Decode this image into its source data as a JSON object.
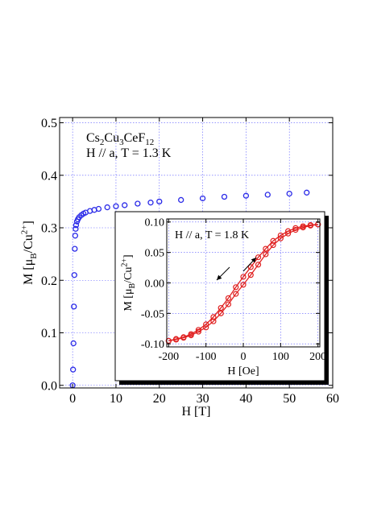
{
  "chart_data": [
    {
      "type": "scatter",
      "role": "main",
      "xlabel": "H [T]",
      "ylabel": {
        "prefix": "M [",
        "mu": "μ",
        "mu_sub": "B",
        "slash": "/Cu",
        "sup": "2+",
        "suffix": "]"
      },
      "annotation": {
        "formula": [
          {
            "t": "Cs",
            "s": ""
          },
          {
            "t": "2",
            "s": "sub"
          },
          {
            "t": "Cu",
            "s": ""
          },
          {
            "t": "3",
            "s": "sub"
          },
          {
            "t": "CeF",
            "s": ""
          },
          {
            "t": "12",
            "s": "sub"
          }
        ],
        "condition": "H // a, T = 1.3 K"
      },
      "xlim": [
        -3,
        60
      ],
      "ylim": [
        -0.005,
        0.51
      ],
      "xticks": [
        0,
        10,
        20,
        30,
        40,
        50,
        60
      ],
      "xtick_labels": [
        "0",
        "10",
        "20",
        "30",
        "40",
        "50",
        "60"
      ],
      "yticks": [
        0,
        0.1,
        0.2,
        0.3,
        0.4,
        0.5
      ],
      "ytick_labels": [
        "0.0",
        "0.1",
        "0.2",
        "0.3",
        "0.4",
        "0.5"
      ],
      "grid": true,
      "color": "#2a2ae8",
      "series": [
        {
          "x": [
            0,
            0.1,
            0.2,
            0.3,
            0.4,
            0.5,
            0.6,
            0.7,
            0.8,
            1,
            1.2,
            1.5,
            2,
            2.5,
            3,
            4,
            5,
            6,
            8,
            10,
            12,
            15,
            18,
            20,
            25,
            30,
            35,
            40,
            45,
            50,
            54
          ],
          "y": [
            0,
            0.03,
            0.08,
            0.15,
            0.21,
            0.26,
            0.285,
            0.298,
            0.305,
            0.312,
            0.316,
            0.32,
            0.324,
            0.327,
            0.329,
            0.332,
            0.334,
            0.336,
            0.339,
            0.341,
            0.343,
            0.346,
            0.348,
            0.35,
            0.353,
            0.356,
            0.359,
            0.361,
            0.363,
            0.365,
            0.367
          ]
        }
      ]
    },
    {
      "type": "line",
      "role": "inset",
      "xlabel": "H [Oe]",
      "ylabel": {
        "prefix": "M [",
        "mu": "μ",
        "mu_sub": "B",
        "slash": "/Cu",
        "sup": "2+",
        "suffix": "]"
      },
      "annotation": "H // a, T = 1.8 K",
      "xlim": [
        -205,
        205
      ],
      "ylim": [
        -0.105,
        0.105
      ],
      "xticks": [
        -200,
        -100,
        0,
        100,
        200
      ],
      "xtick_labels": [
        "-200",
        "-100",
        "0",
        "100",
        "200"
      ],
      "yticks": [
        -0.1,
        -0.05,
        0,
        0.05,
        0.1
      ],
      "ytick_labels": [
        "-0.10",
        "-0.05",
        "0.00",
        "0.05",
        "0.10"
      ],
      "grid": true,
      "color": "#e02020",
      "series": [
        {
          "direction": "increasing",
          "x": [
            -200,
            -180,
            -160,
            -140,
            -120,
            -100,
            -80,
            -60,
            -40,
            -20,
            0,
            20,
            40,
            60,
            80,
            100,
            120,
            140,
            160,
            180,
            200
          ],
          "y": [
            -0.095,
            -0.093,
            -0.09,
            -0.086,
            -0.08,
            -0.073,
            -0.063,
            -0.05,
            -0.035,
            -0.018,
            -0.003,
            0.013,
            0.03,
            0.047,
            0.062,
            0.073,
            0.081,
            0.087,
            0.091,
            0.094,
            0.096
          ]
        },
        {
          "direction": "decreasing",
          "x": [
            200,
            180,
            160,
            140,
            120,
            100,
            80,
            60,
            40,
            20,
            0,
            -20,
            -40,
            -60,
            -80,
            -100,
            -120,
            -140,
            -160,
            -180,
            -200
          ],
          "y": [
            0.096,
            0.095,
            0.093,
            0.09,
            0.085,
            0.078,
            0.069,
            0.056,
            0.042,
            0.026,
            0.01,
            -0.007,
            -0.025,
            -0.041,
            -0.056,
            -0.068,
            -0.077,
            -0.084,
            -0.089,
            -0.092,
            -0.095
          ]
        }
      ]
    }
  ]
}
